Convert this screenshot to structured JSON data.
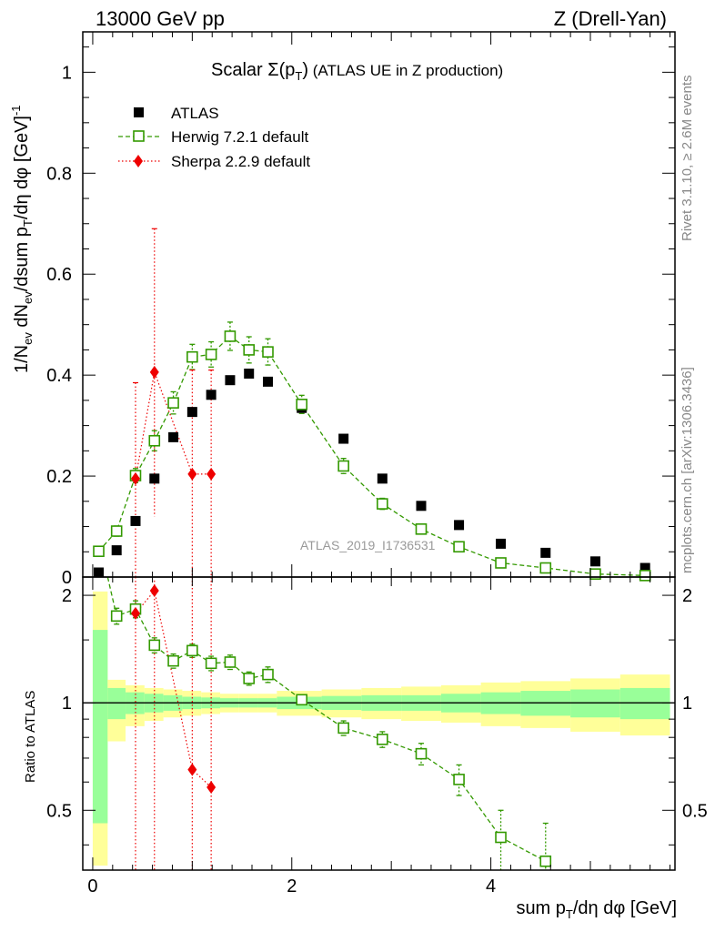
{
  "header": {
    "left": "13000 GeV pp",
    "right": "Z (Drell-Yan)"
  },
  "side": {
    "rivet": "Rivet 3.1.10, ≥ 2.6M events",
    "mcplots": "mcplots.cern.ch [arXiv:1306.3436]"
  },
  "watermark": "ATLAS_2019_I1736531",
  "colors": {
    "atlas": "#000000",
    "herwig": "#339900",
    "sherpa": "#ee0000",
    "band_inner": "#99ff99",
    "band_outer": "#ffff99"
  },
  "chart_data": [
    {
      "type": "scatter",
      "title": "Scalar Σ(p_T) (ATLAS UE in Z production)",
      "title_parts": {
        "prefix": "Scalar ",
        "sigma": "Σ(p",
        "sub": "T",
        "close": ")",
        "suffix": " (ATLAS UE in Z production)"
      },
      "ylabel": "1/N_ev dN_ev/dsum p_T/dη dφ [GeV]^-1",
      "xlim": [
        -0.1,
        5.85
      ],
      "ylim": [
        0,
        1.08
      ],
      "yticks": [
        0,
        0.2,
        0.4,
        0.6,
        0.8,
        1
      ],
      "ytick_labels": [
        "0",
        "0.2",
        "0.4",
        "0.6",
        "0.8",
        "1"
      ],
      "legend_position": "top-left",
      "series": [
        {
          "name": "ATLAS",
          "marker": "filled-square",
          "x": [
            0.06,
            0.24,
            0.43,
            0.62,
            0.81,
            1.0,
            1.19,
            1.38,
            1.57,
            1.76,
            2.1,
            2.52,
            2.91,
            3.3,
            3.68,
            4.1,
            4.55,
            5.05,
            5.55
          ],
          "y": [
            0.009,
            0.053,
            0.111,
            0.195,
            0.277,
            0.327,
            0.361,
            0.39,
            0.403,
            0.387,
            0.335,
            0.274,
            0.195,
            0.141,
            0.103,
            0.066,
            0.048,
            0.031,
            0.018
          ]
        },
        {
          "name": "Herwig 7.2.1 default",
          "marker": "open-square-dashed",
          "x": [
            0.06,
            0.24,
            0.43,
            0.62,
            0.81,
            1.0,
            1.19,
            1.38,
            1.57,
            1.76,
            2.1,
            2.52,
            2.91,
            3.3,
            3.68,
            4.1,
            4.55,
            5.05,
            5.55
          ],
          "y": [
            0.051,
            0.091,
            0.201,
            0.27,
            0.345,
            0.436,
            0.441,
            0.477,
            0.45,
            0.446,
            0.342,
            0.22,
            0.145,
            0.095,
            0.06,
            0.028,
            0.018,
            0.006,
            0.003
          ],
          "err": [
            0.006,
            0.01,
            0.014,
            0.02,
            0.022,
            0.025,
            0.025,
            0.028,
            0.026,
            0.026,
            0.018,
            0.015,
            0.011,
            0.009,
            0.006,
            0.004,
            0.004,
            0.003,
            0.002
          ]
        },
        {
          "name": "Sherpa 2.2.9 default",
          "marker": "filled-diamond-dotted",
          "x": [
            0.43,
            0.62,
            1.0,
            1.19
          ],
          "y": [
            0.195,
            0.406,
            0.204,
            0.204
          ],
          "ylo": [
            0.0,
            0.12,
            0.0,
            0.0
          ],
          "yhi": [
            0.385,
            0.69,
            0.41,
            0.41
          ]
        }
      ]
    },
    {
      "type": "scatter",
      "ylabel": "Ratio to ATLAS",
      "xlabel": "sum p_T/dη dφ [GeV]",
      "xlim": [
        -0.1,
        5.85
      ],
      "ylim": [
        0.34,
        2.25
      ],
      "yticks": [
        0.5,
        1,
        2
      ],
      "ytick_labels": [
        "0.5",
        "1",
        "2"
      ],
      "xticks": [
        0,
        2,
        4
      ],
      "xtick_labels": [
        "0",
        "2",
        "4"
      ],
      "bands": {
        "edges": [
          0.0,
          0.15,
          0.33,
          0.52,
          0.71,
          0.9,
          1.09,
          1.28,
          1.47,
          1.66,
          1.85,
          2.3,
          2.7,
          3.1,
          3.5,
          3.9,
          4.3,
          4.8,
          5.3,
          5.8
        ],
        "inner_lo": [
          0.46,
          0.9,
          0.93,
          0.94,
          0.95,
          0.96,
          0.965,
          0.97,
          0.97,
          0.97,
          0.96,
          0.955,
          0.95,
          0.95,
          0.94,
          0.93,
          0.92,
          0.91,
          0.9
        ],
        "inner_hi": [
          1.6,
          1.1,
          1.07,
          1.06,
          1.05,
          1.04,
          1.035,
          1.03,
          1.03,
          1.03,
          1.04,
          1.045,
          1.05,
          1.05,
          1.06,
          1.07,
          1.08,
          1.09,
          1.1
        ],
        "outer_lo": [
          0.35,
          0.78,
          0.86,
          0.89,
          0.91,
          0.92,
          0.93,
          0.94,
          0.94,
          0.94,
          0.92,
          0.91,
          0.9,
          0.89,
          0.88,
          0.86,
          0.85,
          0.83,
          0.81
        ],
        "outer_hi": [
          2.05,
          1.16,
          1.12,
          1.1,
          1.09,
          1.08,
          1.07,
          1.06,
          1.06,
          1.06,
          1.08,
          1.09,
          1.1,
          1.11,
          1.12,
          1.14,
          1.15,
          1.17,
          1.2
        ]
      },
      "series": [
        {
          "name": "Herwig 7.2.1 default",
          "x": [
            0.24,
            0.43,
            0.62,
            0.81,
            1.0,
            1.19,
            1.38,
            1.57,
            1.76,
            2.1,
            2.52,
            2.91,
            3.3,
            3.68,
            4.1,
            4.55
          ],
          "y": [
            1.75,
            1.83,
            1.45,
            1.31,
            1.4,
            1.29,
            1.3,
            1.17,
            1.2,
            1.02,
            0.85,
            0.79,
            0.72,
            0.61,
            0.42,
            0.36
          ],
          "err": [
            0.09,
            0.1,
            0.07,
            0.06,
            0.06,
            0.06,
            0.06,
            0.05,
            0.06,
            0.03,
            0.04,
            0.04,
            0.05,
            0.06,
            0.08,
            0.1
          ],
          "x_offscale": 0.15
        },
        {
          "name": "Sherpa 2.2.9 default",
          "x": [
            0.43,
            0.62,
            1.0,
            1.19
          ],
          "y": [
            1.78,
            2.06,
            0.65,
            0.58
          ]
        }
      ]
    }
  ]
}
